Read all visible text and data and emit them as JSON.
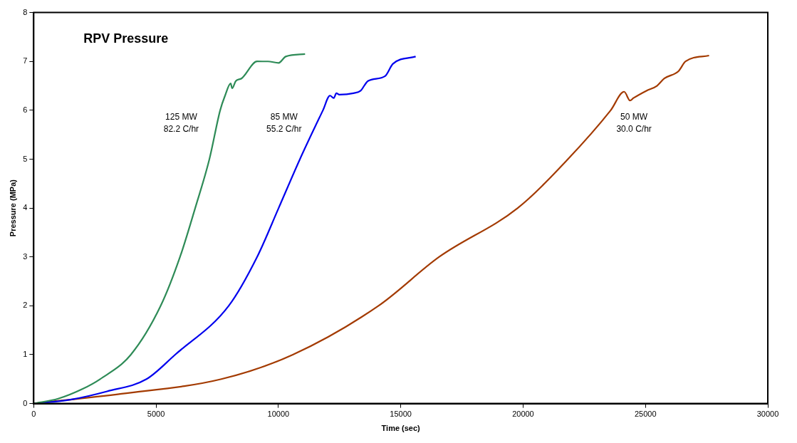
{
  "chart_data": {
    "type": "line",
    "title": "RPV Pressure",
    "xlabel": "Time (sec)",
    "ylabel": "Pressure (MPa)",
    "xlim": [
      0,
      30000
    ],
    "xticks": [
      0,
      5000,
      10000,
      15000,
      20000,
      25000,
      30000
    ],
    "ylim": [
      0,
      8
    ],
    "yticks": [
      0,
      1,
      2,
      3,
      4,
      5,
      6,
      7,
      8
    ],
    "grid": false,
    "legend": false,
    "marker": "none",
    "line_style": "solid",
    "series": [
      {
        "name": "125 MW\n82.2 C/hr",
        "color": "#2e8b57",
        "x": [
          0,
          1000,
          2000,
          2714,
          3970,
          5190,
          5980,
          6600,
          7180,
          7620,
          7820,
          8050,
          8110,
          8260,
          8490,
          9130,
          9570,
          10010,
          10300,
          11090
        ],
        "values": [
          0,
          0.1,
          0.3,
          0.5,
          1,
          2,
          3,
          4,
          5,
          6,
          6.3,
          6.55,
          6.45,
          6.6,
          6.65,
          7.0,
          7.0,
          6.97,
          7.1,
          7.15
        ]
      },
      {
        "name": "85 MW\n55.2 C/hr",
        "color": "#0000ee",
        "x": [
          0,
          1500,
          3000,
          4610,
          5780,
          7970,
          9130,
          10010,
          10880,
          11820,
          12110,
          12260,
          12370,
          12490,
          13070,
          13360,
          13660,
          14360,
          14680,
          15610
        ],
        "values": [
          0,
          0.08,
          0.25,
          0.5,
          1,
          2,
          3,
          4,
          5,
          6,
          6.3,
          6.25,
          6.35,
          6.32,
          6.35,
          6.4,
          6.6,
          6.7,
          6.95,
          7.1
        ]
      },
      {
        "name": "50 MW\n30.0 C/hr",
        "color": "#a33a00",
        "x": [
          0,
          3590,
          7670,
          10590,
          14090,
          16570,
          19780,
          21830,
          23580,
          24130,
          24370,
          24510,
          25040,
          25470,
          25770,
          26350,
          26640,
          27600
        ],
        "values": [
          0,
          0.2,
          0.5,
          1,
          2,
          3,
          4,
          5,
          6,
          6.38,
          6.2,
          6.25,
          6.4,
          6.5,
          6.65,
          6.8,
          7.0,
          7.12
        ]
      }
    ]
  }
}
